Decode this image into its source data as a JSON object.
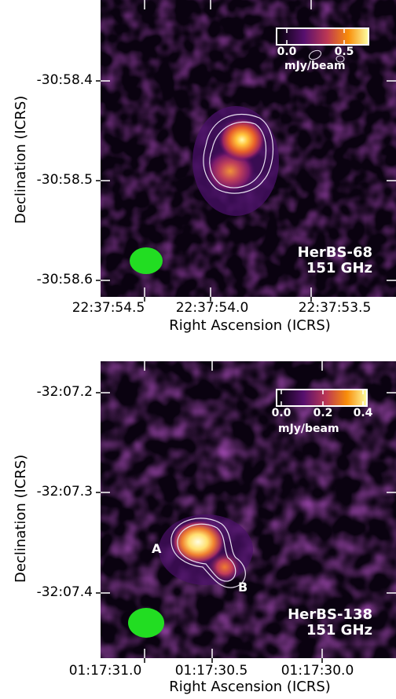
{
  "panels": [
    {
      "source": "HerBS-68",
      "frequency": "151 GHz",
      "ylabel": "Declination (ICRS)",
      "xlabel": "Right Ascension (ICRS)",
      "yticks": [
        "-30:58.4",
        "-30:58.5",
        "-30:58.6"
      ],
      "xticks": [
        "22:37:54.5",
        "22:37:54.0",
        "22:37:53.5"
      ],
      "colorbar": {
        "ticks": [
          "0.0",
          "0.5"
        ],
        "unit": "mJy/beam",
        "min": -0.1,
        "max": 0.7
      },
      "components": [],
      "beam_color": "#22dd22"
    },
    {
      "source": "HerBS-138",
      "frequency": "151 GHz",
      "ylabel": "Declination (ICRS)",
      "xlabel": "Right Ascension (ICRS)",
      "yticks": [
        "-32:07.2",
        "-32:07.3",
        "-32:07.4"
      ],
      "xticks": [
        "01:17:31.0",
        "01:17:30.5",
        "01:17:30.0"
      ],
      "colorbar": {
        "ticks": [
          "0.0",
          "0.2",
          "0.4"
        ],
        "unit": "mJy/beam",
        "min": -0.05,
        "max": 0.4
      },
      "components": [
        "A",
        "B"
      ],
      "beam_color": "#22dd22"
    }
  ]
}
